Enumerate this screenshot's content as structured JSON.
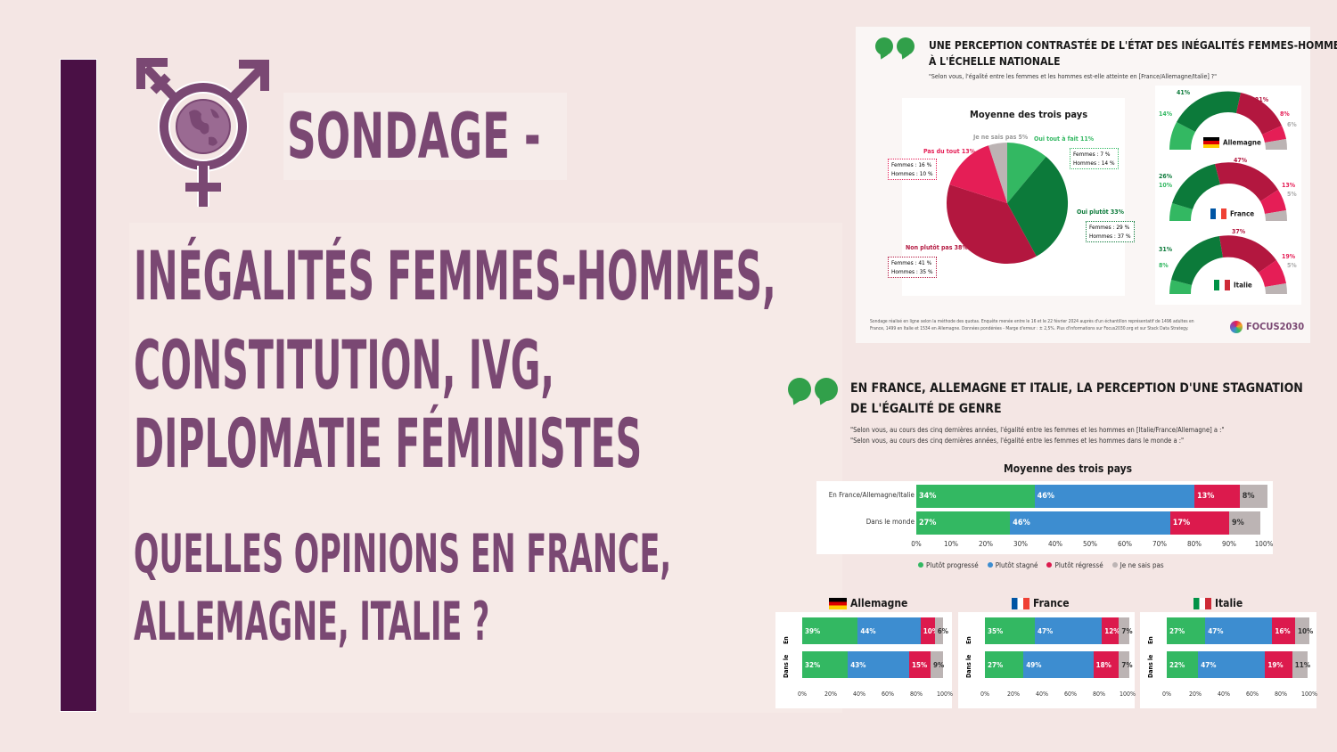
{
  "left": {
    "sondage": "SONDAGE -",
    "title_lines": [
      "INÉGALITÉS FEMMES-HOMMES,",
      "CONSTITUTION, IVG,",
      "DIPLOMATIE FÉMINISTES"
    ],
    "subtitle_lines": [
      "QUELLES OPINIONS EN FRANCE,",
      "ALLEMAGNE, ITALIE ?"
    ]
  },
  "top_infographic": {
    "heading_line1": "UNE PERCEPTION CONTRASTÉE DE L'ÉTAT DES INÉGALITÉS FEMMES-HOMMES",
    "heading_line2": "À L'ÉCHELLE NATIONALE",
    "question": "\"Selon vous, l'égalité entre les femmes et les hommes est-elle atteinte en [France/Allemagne/Italie] ?\"",
    "pie_title": "Moyenne des trois pays",
    "labels": {
      "jnsp": "Je ne sais pas 5%",
      "oui_tout": "Oui tout à fait 11%",
      "pas_du_tout": "Pas du tout 13%",
      "oui_plutot": "Oui plutôt 33%",
      "non_plutot": "Non plutôt pas 38%"
    },
    "boxes": {
      "oui_tout_f": "Femmes : 7 %",
      "oui_tout_h": "Hommes : 14 %",
      "pas_du_tout_f": "Femmes : 16 %",
      "pas_du_tout_h": "Hommes : 10 %",
      "oui_plutot_f": "Femmes : 29 %",
      "oui_plutot_h": "Hommes : 37 %",
      "non_plutot_f": "Femmes : 41 %",
      "non_plutot_h": "Hommes : 35 %"
    },
    "gauges": [
      {
        "country": "Allemagne",
        "a": "41%",
        "b": "14%",
        "c": "31%",
        "d": "8%",
        "e": "6%"
      },
      {
        "country": "France",
        "a": "47%",
        "b": "26%",
        "c": "10%",
        "d": "13%",
        "e": "5%"
      },
      {
        "country": "Italie",
        "a": "37%",
        "b": "31%",
        "c": "8%",
        "d": "19%",
        "e": "5%"
      }
    ],
    "footnote_line1": "Sondage réalisé en ligne selon la méthode des quotas. Enquête menée entre le 16 et le 22 février 2024 auprès d'un échantillon représentatif de 1496 adultes en",
    "footnote_line2": "France, 1499 en Italie et 1534 en Allemagne. Données pondérées - Marge d'erreur : ± 2,5%. Plus d'informations sur Focus2030.org et sur Stack Data Strategy.",
    "logo": "FOCUS2030"
  },
  "bottom_infographic": {
    "heading_line1": "EN FRANCE, ALLEMAGNE ET ITALIE, LA PERCEPTION D'UNE STAGNATION",
    "heading_line2": "DE L'ÉGALITÉ DE GENRE",
    "q1": "\"Selon vous, au cours des cinq dernières années, l'égalité entre les femmes et les hommes en [Italie/France/Allemagne] a :\"",
    "q2": "\"Selon vous, au cours des cinq dernières années, l'égalité entre les femmes et les hommes dans le monde a :\"",
    "avg_title": "Moyenne des trois pays",
    "avg_rows": [
      {
        "label": "En France/Allemagne/Italie",
        "values": [
          34,
          46,
          13,
          8
        ],
        "texts": [
          "34%",
          "46%",
          "13%",
          "8%"
        ]
      },
      {
        "label": "Dans le monde",
        "values": [
          27,
          46,
          17,
          9
        ],
        "texts": [
          "27%",
          "46%",
          "17%",
          "9%"
        ]
      }
    ],
    "avg_ticks": [
      "0%",
      "10%",
      "20%",
      "30%",
      "40%",
      "50%",
      "60%",
      "70%",
      "80%",
      "90%",
      "100%"
    ],
    "legend": [
      "Plutôt progressé",
      "Plutôt stagné",
      "Plutôt régressé",
      "Je ne sais pas"
    ],
    "colors": [
      "#33b862",
      "#3d8dd0",
      "#dc1a4d",
      "#bcb4b4"
    ],
    "countries": [
      {
        "name": "Allemagne",
        "r1": [
          39,
          44,
          10,
          6
        ],
        "t1": [
          "39%",
          "44%",
          "10%",
          "6%"
        ],
        "r2": [
          32,
          43,
          15,
          9
        ],
        "t2": [
          "32%",
          "43%",
          "15%",
          "9%"
        ]
      },
      {
        "name": "France",
        "r1": [
          35,
          47,
          12,
          7
        ],
        "t1": [
          "35%",
          "47%",
          "12%",
          "7%"
        ],
        "r2": [
          27,
          49,
          18,
          7
        ],
        "t2": [
          "27%",
          "49%",
          "18%",
          "7%"
        ]
      },
      {
        "name": "Italie",
        "r1": [
          27,
          47,
          16,
          10
        ],
        "t1": [
          "27%",
          "47%",
          "16%",
          "10%"
        ],
        "r2": [
          22,
          47,
          19,
          11
        ],
        "t2": [
          "22%",
          "47%",
          "19%",
          "11%"
        ]
      }
    ],
    "row_label_en": "En",
    "row_label_monde": "Dans le",
    "small_ticks": [
      "0%",
      "20%",
      "40%",
      "60%",
      "80%",
      "100%"
    ]
  }
}
